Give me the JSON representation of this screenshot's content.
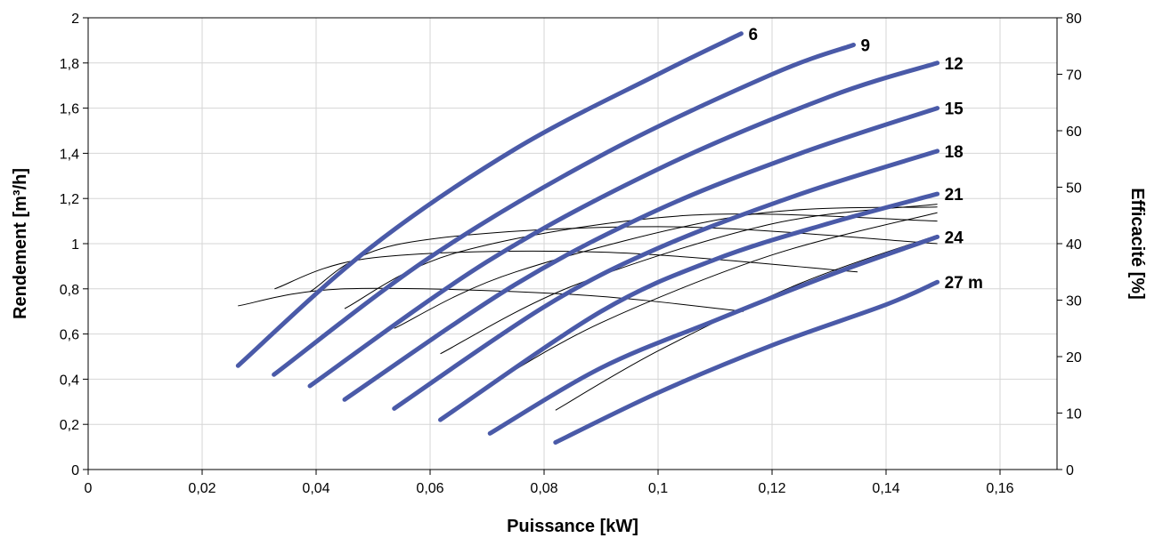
{
  "chart_data": {
    "type": "line",
    "xlabel": "Puissance [kW]",
    "ylabel": "Rendement [m³/h]",
    "y2label": "Efficacité [%]",
    "xlim": [
      0,
      0.17
    ],
    "ylim": [
      0,
      2
    ],
    "y2lim": [
      0,
      80
    ],
    "x_ticks": [
      0,
      0.02,
      0.04,
      0.06,
      0.08,
      0.1,
      0.12,
      0.14,
      0.16
    ],
    "x_tick_labels": [
      "0",
      "0,02",
      "0,04",
      "0,06",
      "0,08",
      "0,1",
      "0,12",
      "0,14",
      "0,16"
    ],
    "y_ticks": [
      0,
      0.2,
      0.4,
      0.6,
      0.8,
      1,
      1.2,
      1.4,
      1.6,
      1.8,
      2
    ],
    "y_tick_labels": [
      "0",
      "0,2",
      "0,4",
      "0,6",
      "0,8",
      "1",
      "1,2",
      "1,4",
      "1,6",
      "1,8",
      "2"
    ],
    "y2_ticks": [
      0,
      10,
      20,
      30,
      40,
      50,
      60,
      70,
      80
    ],
    "y2_tick_labels": [
      "0",
      "10",
      "20",
      "30",
      "40",
      "50",
      "60",
      "70",
      "80"
    ],
    "grid": true,
    "series_color": "#4a5aa8",
    "efficiency_color": "#000000",
    "series": [
      {
        "label": "6",
        "x": [
          0.0263,
          0.0494,
          0.075,
          0.1,
          0.1146
        ],
        "y": [
          0.46,
          0.98,
          1.42,
          1.75,
          1.93
        ]
      },
      {
        "label": "9",
        "x": [
          0.0326,
          0.06,
          0.09,
          0.12,
          0.1343
        ],
        "y": [
          0.42,
          0.94,
          1.39,
          1.75,
          1.88
        ]
      },
      {
        "label": "12",
        "x": [
          0.0389,
          0.07,
          0.1,
          0.13,
          0.149
        ],
        "y": [
          0.37,
          0.92,
          1.33,
          1.65,
          1.8
        ]
      },
      {
        "label": "15",
        "x": [
          0.045,
          0.075,
          0.1,
          0.125,
          0.149
        ],
        "y": [
          0.31,
          0.82,
          1.15,
          1.4,
          1.6
        ]
      },
      {
        "label": "18",
        "x": [
          0.0537,
          0.08,
          0.1,
          0.125,
          0.149
        ],
        "y": [
          0.27,
          0.72,
          0.98,
          1.22,
          1.41
        ]
      },
      {
        "label": "21",
        "x": [
          0.0618,
          0.09,
          0.11,
          0.13,
          0.149
        ],
        "y": [
          0.22,
          0.7,
          0.93,
          1.09,
          1.22
        ]
      },
      {
        "label": "24",
        "x": [
          0.0705,
          0.09,
          0.11,
          0.13,
          0.149
        ],
        "y": [
          0.16,
          0.45,
          0.66,
          0.86,
          1.03
        ]
      },
      {
        "label": "27 m",
        "x": [
          0.082,
          0.1,
          0.12,
          0.14,
          0.149
        ],
        "y": [
          0.12,
          0.34,
          0.55,
          0.73,
          0.83
        ]
      }
    ],
    "efficiency_curves": [
      {
        "x": [
          0.0263,
          0.045,
          0.085,
          0.115
        ],
        "y": [
          29,
          32,
          31,
          28
        ]
      },
      {
        "x": [
          0.0327,
          0.05,
          0.09,
          0.135
        ],
        "y": [
          32,
          37.5,
          38.5,
          35
        ]
      },
      {
        "x": [
          0.0389,
          0.055,
          0.1,
          0.149
        ],
        "y": [
          31.5,
          40,
          43,
          40
        ]
      },
      {
        "x": [
          0.045,
          0.065,
          0.105,
          0.149
        ],
        "y": [
          28.5,
          38.5,
          45,
          44
        ]
      },
      {
        "x": [
          0.0537,
          0.075,
          0.115,
          0.149
        ],
        "y": [
          25,
          35,
          45,
          46.5
        ]
      },
      {
        "x": [
          0.0618,
          0.085,
          0.12,
          0.149
        ],
        "y": [
          20.5,
          32.5,
          43.5,
          47
        ]
      },
      {
        "x": [
          0.0705,
          0.09,
          0.12,
          0.149
        ],
        "y": [
          15,
          26,
          38,
          45.5
        ]
      },
      {
        "x": [
          0.082,
          0.1,
          0.125,
          0.149
        ],
        "y": [
          10.5,
          21,
          33,
          41.5
        ]
      }
    ]
  }
}
